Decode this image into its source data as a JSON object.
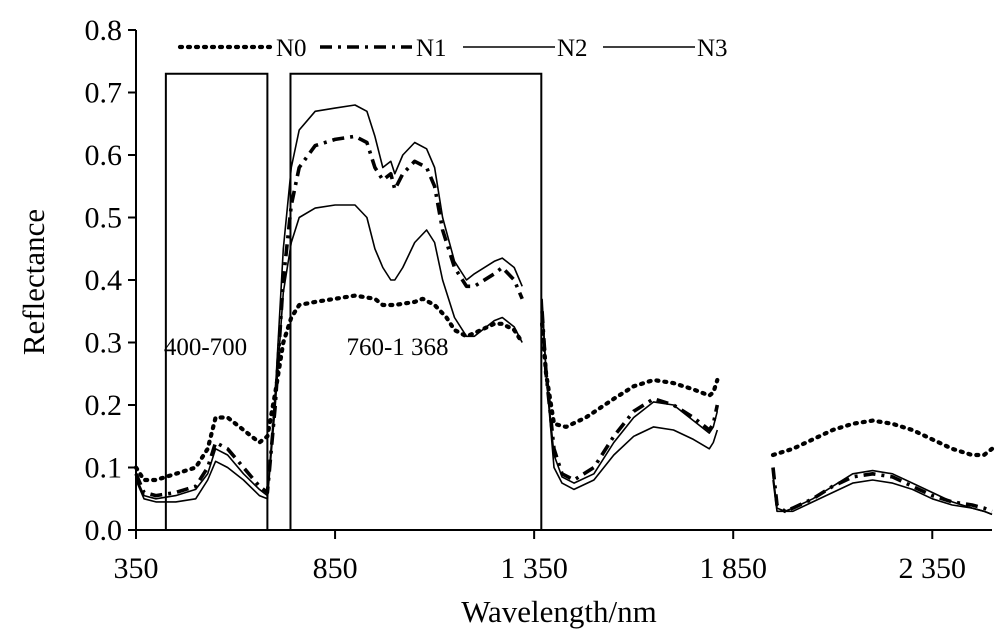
{
  "chart_data": {
    "type": "line",
    "xlabel": "Wavelength/nm",
    "ylabel": "Reflectance",
    "xlim": [
      350,
      2500
    ],
    "ylim": [
      0,
      0.8
    ],
    "xticks": [
      {
        "value": 350,
        "label": "350"
      },
      {
        "value": 850,
        "label": "850"
      },
      {
        "value": 1350,
        "label": "1 350"
      },
      {
        "value": 1850,
        "label": "1 850"
      },
      {
        "value": 2350,
        "label": "2 350"
      }
    ],
    "yticks": [
      {
        "value": 0,
        "label": "0.0"
      },
      {
        "value": 0.1,
        "label": "0.1"
      },
      {
        "value": 0.2,
        "label": "0.2"
      },
      {
        "value": 0.3,
        "label": "0.3"
      },
      {
        "value": 0.4,
        "label": "0.4"
      },
      {
        "value": 0.5,
        "label": "0.5"
      },
      {
        "value": 0.6,
        "label": "0.6"
      },
      {
        "value": 0.7,
        "label": "0.7"
      },
      {
        "value": 0.8,
        "label": "0.8"
      }
    ],
    "grid": false,
    "legend_position": "top",
    "regions": [
      {
        "label": "400-700",
        "x_start": 425,
        "x_end": 680,
        "y_top": 0.73
      },
      {
        "label": "760-1 368",
        "x_start": 738,
        "x_end": 1368,
        "y_top": 0.73
      }
    ],
    "series": [
      {
        "name": "N0",
        "style": "dotted",
        "segments": [
          [
            [
              350,
              0.1
            ],
            [
              370,
              0.08
            ],
            [
              400,
              0.08
            ],
            [
              450,
              0.09
            ],
            [
              500,
              0.1
            ],
            [
              530,
              0.13
            ],
            [
              550,
              0.18
            ],
            [
              580,
              0.18
            ],
            [
              620,
              0.16
            ],
            [
              660,
              0.14
            ],
            [
              680,
              0.15
            ],
            [
              700,
              0.22
            ],
            [
              720,
              0.3
            ],
            [
              740,
              0.34
            ],
            [
              760,
              0.36
            ],
            [
              800,
              0.365
            ],
            [
              850,
              0.37
            ],
            [
              900,
              0.375
            ],
            [
              950,
              0.37
            ],
            [
              970,
              0.36
            ],
            [
              1000,
              0.36
            ],
            [
              1050,
              0.365
            ],
            [
              1070,
              0.37
            ],
            [
              1100,
              0.36
            ],
            [
              1130,
              0.34
            ],
            [
              1150,
              0.32
            ],
            [
              1180,
              0.31
            ],
            [
              1200,
              0.315
            ],
            [
              1250,
              0.33
            ],
            [
              1270,
              0.33
            ],
            [
              1300,
              0.32
            ],
            [
              1320,
              0.3
            ]
          ],
          [
            [
              1370,
              0.33
            ],
            [
              1380,
              0.25
            ],
            [
              1400,
              0.17
            ],
            [
              1430,
              0.165
            ],
            [
              1480,
              0.18
            ],
            [
              1550,
              0.21
            ],
            [
              1600,
              0.23
            ],
            [
              1650,
              0.24
            ],
            [
              1700,
              0.235
            ],
            [
              1750,
              0.225
            ],
            [
              1790,
              0.215
            ],
            [
              1800,
              0.22
            ],
            [
              1810,
              0.24
            ]
          ],
          [
            [
              1950,
              0.12
            ],
            [
              2000,
              0.13
            ],
            [
              2050,
              0.145
            ],
            [
              2100,
              0.16
            ],
            [
              2150,
              0.17
            ],
            [
              2200,
              0.175
            ],
            [
              2250,
              0.17
            ],
            [
              2300,
              0.16
            ],
            [
              2350,
              0.145
            ],
            [
              2400,
              0.13
            ],
            [
              2450,
              0.12
            ],
            [
              2480,
              0.12
            ],
            [
              2500,
              0.13
            ]
          ]
        ]
      },
      {
        "name": "N1",
        "style": "dash-dot",
        "segments": [
          [
            [
              350,
              0.09
            ],
            [
              370,
              0.06
            ],
            [
              400,
              0.055
            ],
            [
              450,
              0.06
            ],
            [
              500,
              0.07
            ],
            [
              530,
              0.1
            ],
            [
              550,
              0.14
            ],
            [
              580,
              0.13
            ],
            [
              620,
              0.1
            ],
            [
              660,
              0.07
            ],
            [
              680,
              0.06
            ],
            [
              700,
              0.2
            ],
            [
              720,
              0.4
            ],
            [
              740,
              0.52
            ],
            [
              760,
              0.58
            ],
            [
              800,
              0.615
            ],
            [
              850,
              0.625
            ],
            [
              900,
              0.63
            ],
            [
              930,
              0.62
            ],
            [
              950,
              0.58
            ],
            [
              970,
              0.56
            ],
            [
              990,
              0.57
            ],
            [
              1000,
              0.545
            ],
            [
              1020,
              0.57
            ],
            [
              1050,
              0.59
            ],
            [
              1080,
              0.58
            ],
            [
              1100,
              0.55
            ],
            [
              1120,
              0.48
            ],
            [
              1150,
              0.42
            ],
            [
              1180,
              0.39
            ],
            [
              1200,
              0.39
            ],
            [
              1250,
              0.41
            ],
            [
              1270,
              0.42
            ],
            [
              1300,
              0.4
            ],
            [
              1320,
              0.37
            ]
          ],
          [
            [
              1370,
              0.35
            ],
            [
              1380,
              0.25
            ],
            [
              1400,
              0.13
            ],
            [
              1420,
              0.09
            ],
            [
              1450,
              0.08
            ],
            [
              1500,
              0.1
            ],
            [
              1550,
              0.15
            ],
            [
              1600,
              0.19
            ],
            [
              1650,
              0.21
            ],
            [
              1700,
              0.2
            ],
            [
              1750,
              0.18
            ],
            [
              1790,
              0.16
            ],
            [
              1800,
              0.17
            ],
            [
              1810,
              0.2
            ]
          ],
          [
            [
              1950,
              0.1
            ],
            [
              1960,
              0.04
            ],
            [
              1980,
              0.03
            ],
            [
              2000,
              0.035
            ],
            [
              2050,
              0.05
            ],
            [
              2100,
              0.07
            ],
            [
              2150,
              0.085
            ],
            [
              2200,
              0.09
            ],
            [
              2250,
              0.085
            ],
            [
              2300,
              0.07
            ],
            [
              2350,
              0.055
            ],
            [
              2400,
              0.045
            ],
            [
              2450,
              0.04
            ],
            [
              2480,
              0.035
            ],
            [
              2500,
              0.03
            ]
          ]
        ]
      },
      {
        "name": "N2",
        "style": "solid",
        "segments": [
          [
            [
              350,
              0.085
            ],
            [
              370,
              0.055
            ],
            [
              400,
              0.05
            ],
            [
              450,
              0.055
            ],
            [
              500,
              0.065
            ],
            [
              530,
              0.09
            ],
            [
              550,
              0.13
            ],
            [
              580,
              0.12
            ],
            [
              620,
              0.09
            ],
            [
              660,
              0.065
            ],
            [
              680,
              0.055
            ],
            [
              700,
              0.22
            ],
            [
              720,
              0.45
            ],
            [
              740,
              0.58
            ],
            [
              760,
              0.64
            ],
            [
              800,
              0.67
            ],
            [
              850,
              0.675
            ],
            [
              900,
              0.68
            ],
            [
              930,
              0.67
            ],
            [
              950,
              0.63
            ],
            [
              970,
              0.58
            ],
            [
              990,
              0.59
            ],
            [
              1000,
              0.57
            ],
            [
              1020,
              0.6
            ],
            [
              1050,
              0.62
            ],
            [
              1080,
              0.61
            ],
            [
              1100,
              0.58
            ],
            [
              1120,
              0.5
            ],
            [
              1150,
              0.43
            ],
            [
              1180,
              0.4
            ],
            [
              1200,
              0.41
            ],
            [
              1250,
              0.43
            ],
            [
              1270,
              0.435
            ],
            [
              1300,
              0.42
            ],
            [
              1320,
              0.39
            ]
          ],
          [
            [
              1370,
              0.36
            ],
            [
              1380,
              0.25
            ],
            [
              1400,
              0.12
            ],
            [
              1420,
              0.085
            ],
            [
              1450,
              0.075
            ],
            [
              1500,
              0.09
            ],
            [
              1550,
              0.14
            ],
            [
              1600,
              0.18
            ],
            [
              1650,
              0.205
            ],
            [
              1700,
              0.2
            ],
            [
              1750,
              0.175
            ],
            [
              1790,
              0.155
            ],
            [
              1800,
              0.165
            ],
            [
              1810,
              0.19
            ]
          ],
          [
            [
              1950,
              0.09
            ],
            [
              1960,
              0.035
            ],
            [
              1980,
              0.03
            ],
            [
              2000,
              0.035
            ],
            [
              2050,
              0.05
            ],
            [
              2100,
              0.07
            ],
            [
              2150,
              0.09
            ],
            [
              2200,
              0.095
            ],
            [
              2250,
              0.09
            ],
            [
              2300,
              0.075
            ],
            [
              2350,
              0.06
            ],
            [
              2400,
              0.045
            ],
            [
              2450,
              0.035
            ],
            [
              2480,
              0.03
            ],
            [
              2500,
              0.025
            ]
          ]
        ]
      },
      {
        "name": "N3",
        "style": "solid",
        "segments": [
          [
            [
              350,
              0.08
            ],
            [
              370,
              0.05
            ],
            [
              400,
              0.045
            ],
            [
              450,
              0.045
            ],
            [
              500,
              0.05
            ],
            [
              530,
              0.08
            ],
            [
              550,
              0.11
            ],
            [
              580,
              0.1
            ],
            [
              620,
              0.08
            ],
            [
              660,
              0.055
            ],
            [
              680,
              0.05
            ],
            [
              700,
              0.2
            ],
            [
              720,
              0.38
            ],
            [
              740,
              0.46
            ],
            [
              760,
              0.5
            ],
            [
              800,
              0.515
            ],
            [
              850,
              0.52
            ],
            [
              900,
              0.52
            ],
            [
              930,
              0.5
            ],
            [
              950,
              0.45
            ],
            [
              970,
              0.42
            ],
            [
              990,
              0.4
            ],
            [
              1000,
              0.4
            ],
            [
              1020,
              0.42
            ],
            [
              1050,
              0.46
            ],
            [
              1080,
              0.48
            ],
            [
              1100,
              0.46
            ],
            [
              1120,
              0.4
            ],
            [
              1150,
              0.34
            ],
            [
              1180,
              0.31
            ],
            [
              1200,
              0.31
            ],
            [
              1250,
              0.335
            ],
            [
              1270,
              0.34
            ],
            [
              1300,
              0.325
            ],
            [
              1320,
              0.3
            ]
          ],
          [
            [
              1370,
              0.37
            ],
            [
              1380,
              0.25
            ],
            [
              1400,
              0.1
            ],
            [
              1420,
              0.075
            ],
            [
              1450,
              0.065
            ],
            [
              1500,
              0.08
            ],
            [
              1550,
              0.12
            ],
            [
              1600,
              0.15
            ],
            [
              1650,
              0.165
            ],
            [
              1700,
              0.16
            ],
            [
              1750,
              0.145
            ],
            [
              1790,
              0.13
            ],
            [
              1800,
              0.14
            ],
            [
              1810,
              0.16
            ]
          ],
          [
            [
              1950,
              0.08
            ],
            [
              1960,
              0.03
            ],
            [
              1980,
              0.03
            ],
            [
              2000,
              0.03
            ],
            [
              2050,
              0.045
            ],
            [
              2100,
              0.06
            ],
            [
              2150,
              0.075
            ],
            [
              2200,
              0.08
            ],
            [
              2250,
              0.075
            ],
            [
              2300,
              0.065
            ],
            [
              2350,
              0.05
            ],
            [
              2400,
              0.04
            ],
            [
              2450,
              0.035
            ],
            [
              2480,
              0.03
            ],
            [
              2500,
              0.025
            ]
          ]
        ]
      }
    ]
  }
}
